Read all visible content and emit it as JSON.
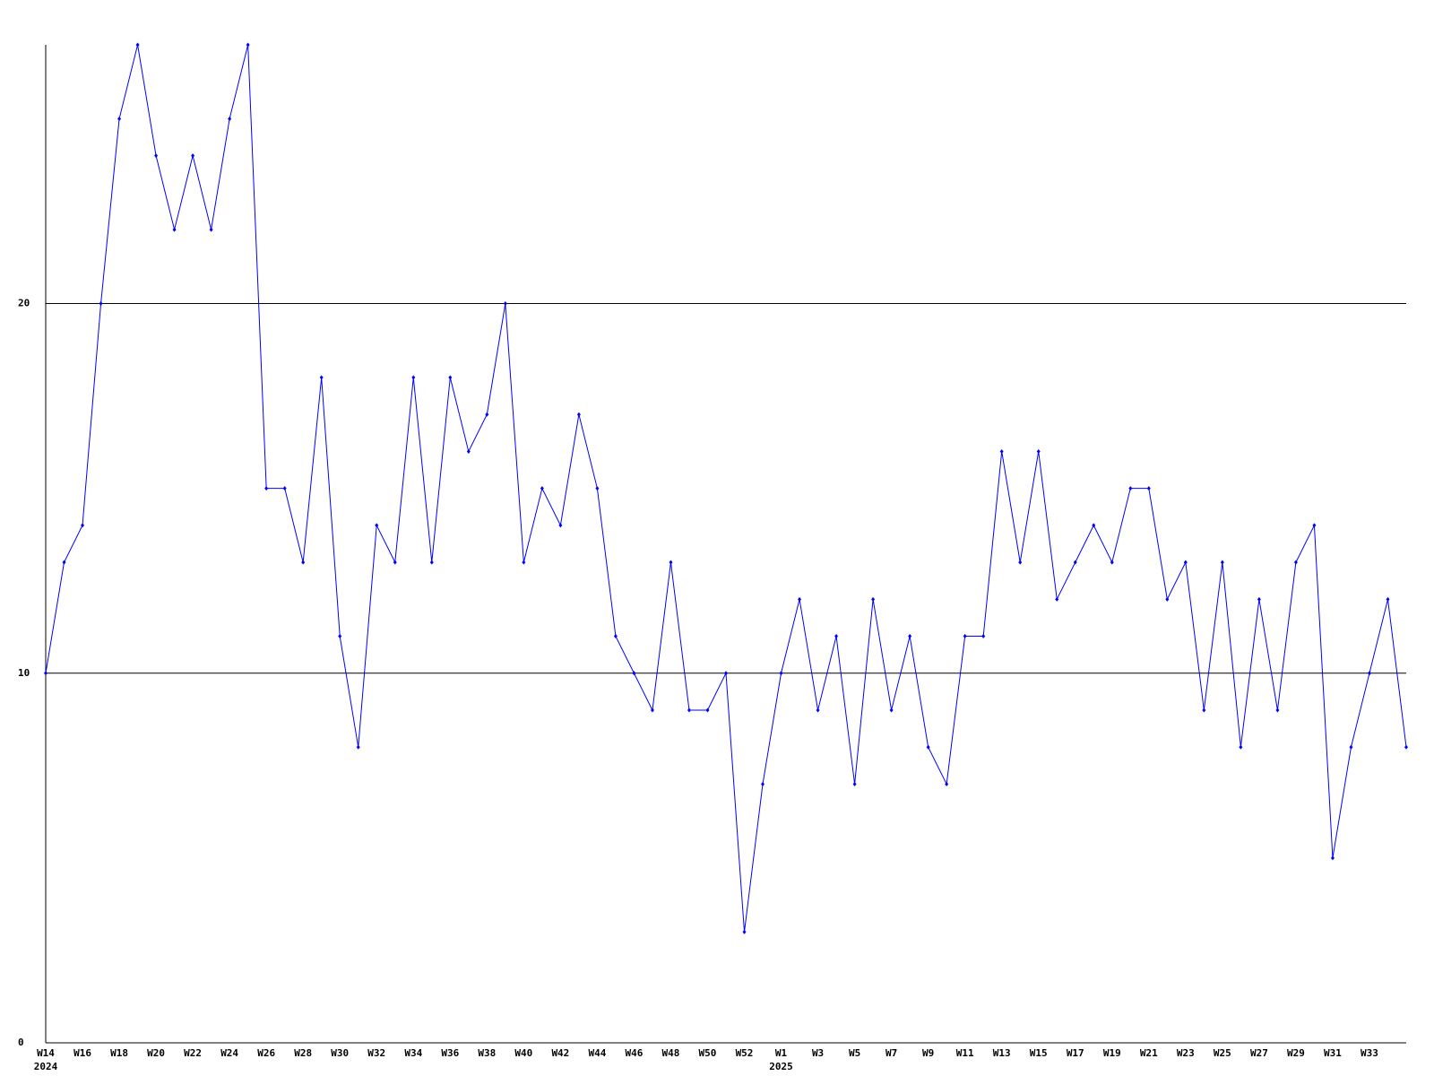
{
  "chart_data": {
    "type": "line",
    "categories": [
      "W14",
      null,
      "W16",
      null,
      "W18",
      null,
      "W20",
      null,
      "W22",
      null,
      "W24",
      null,
      "W26",
      null,
      "W28",
      null,
      "W30",
      null,
      "W32",
      null,
      "W34",
      null,
      "W36",
      null,
      "W38",
      null,
      "W40",
      null,
      "W42",
      null,
      "W44",
      null,
      "W46",
      null,
      "W48",
      null,
      "W50",
      null,
      "W52",
      null,
      "W1",
      null,
      "W3",
      null,
      "W5",
      null,
      "W7",
      null,
      "W9",
      null,
      "W11",
      null,
      "W13",
      null,
      "W15",
      null,
      "W17",
      null,
      "W19",
      null,
      "W21",
      null,
      "W23",
      null,
      "W25",
      null,
      "W27",
      null,
      "W29",
      null,
      "W31",
      null,
      "W33",
      null,
      null
    ],
    "sublabels": [
      "2024",
      null,
      null,
      null,
      null,
      null,
      null,
      null,
      null,
      null,
      null,
      null,
      null,
      null,
      null,
      null,
      null,
      null,
      null,
      null,
      null,
      null,
      null,
      null,
      null,
      null,
      null,
      null,
      null,
      null,
      null,
      null,
      null,
      null,
      null,
      null,
      null,
      null,
      null,
      null,
      "2025",
      null,
      null,
      null,
      null,
      null,
      null,
      null,
      null,
      null,
      null,
      null,
      null,
      null,
      null,
      null,
      null,
      null,
      null,
      null,
      null,
      null,
      null,
      null,
      null,
      null,
      null,
      null,
      null,
      null,
      null,
      null,
      null,
      null,
      null
    ],
    "series": [
      {
        "color": "#0000ff",
        "values": [
          10,
          13,
          14,
          20,
          25,
          27,
          24,
          22,
          24,
          22,
          25,
          27,
          15,
          15,
          13,
          18,
          11,
          8,
          14,
          13,
          18,
          13,
          18,
          16,
          17,
          20,
          13,
          15,
          14,
          17,
          15,
          11,
          10,
          9,
          13,
          9,
          9,
          10,
          3,
          7,
          10,
          12,
          9,
          11,
          7,
          12,
          9,
          11,
          8,
          7,
          11,
          11,
          16,
          13,
          16,
          12,
          13,
          14,
          13,
          15,
          15,
          12,
          13,
          9,
          13,
          8,
          12,
          9,
          13,
          14,
          5,
          8,
          10,
          12,
          8
        ]
      }
    ],
    "ylim": [
      0,
      27
    ],
    "yticks": [
      0,
      10,
      20
    ],
    "grid": true
  }
}
